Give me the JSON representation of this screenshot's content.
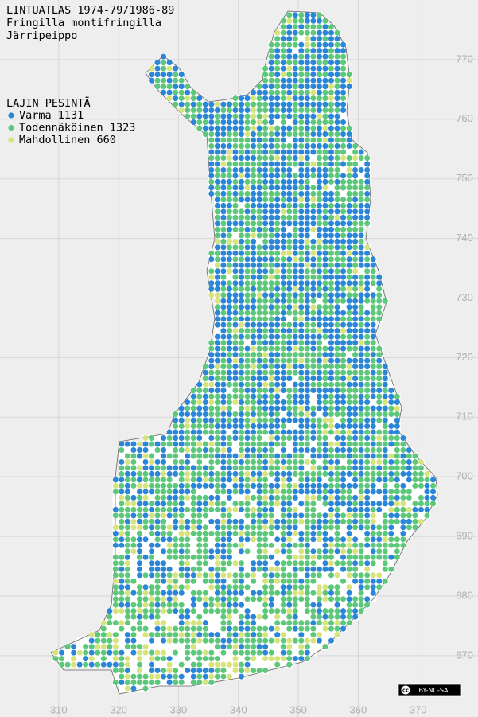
{
  "header": {
    "lines": [
      "LINTUATLAS 1974-79/1986-89",
      "Fringilla montifringilla",
      "Järripeippo"
    ]
  },
  "legend": {
    "title": "LAJIN PESINTÄ",
    "entries": [
      {
        "name": "Varma",
        "count": 1131,
        "color": "#2a86d8"
      },
      {
        "name": "Todennäköinen",
        "count": 1323,
        "color": "#5cc87a"
      },
      {
        "name": "Mahdollinen",
        "count": 660,
        "color": "#d8e47a"
      }
    ]
  },
  "map": {
    "xlim": [
      300.2,
      380
    ],
    "ylim": [
      659.7,
      780
    ],
    "xticks": [
      310,
      320,
      330,
      340,
      350,
      360,
      370
    ],
    "yticks": [
      770,
      760,
      750,
      740,
      730,
      720,
      710,
      700,
      690,
      680,
      670
    ]
  },
  "license": "BY-NC-SA"
}
